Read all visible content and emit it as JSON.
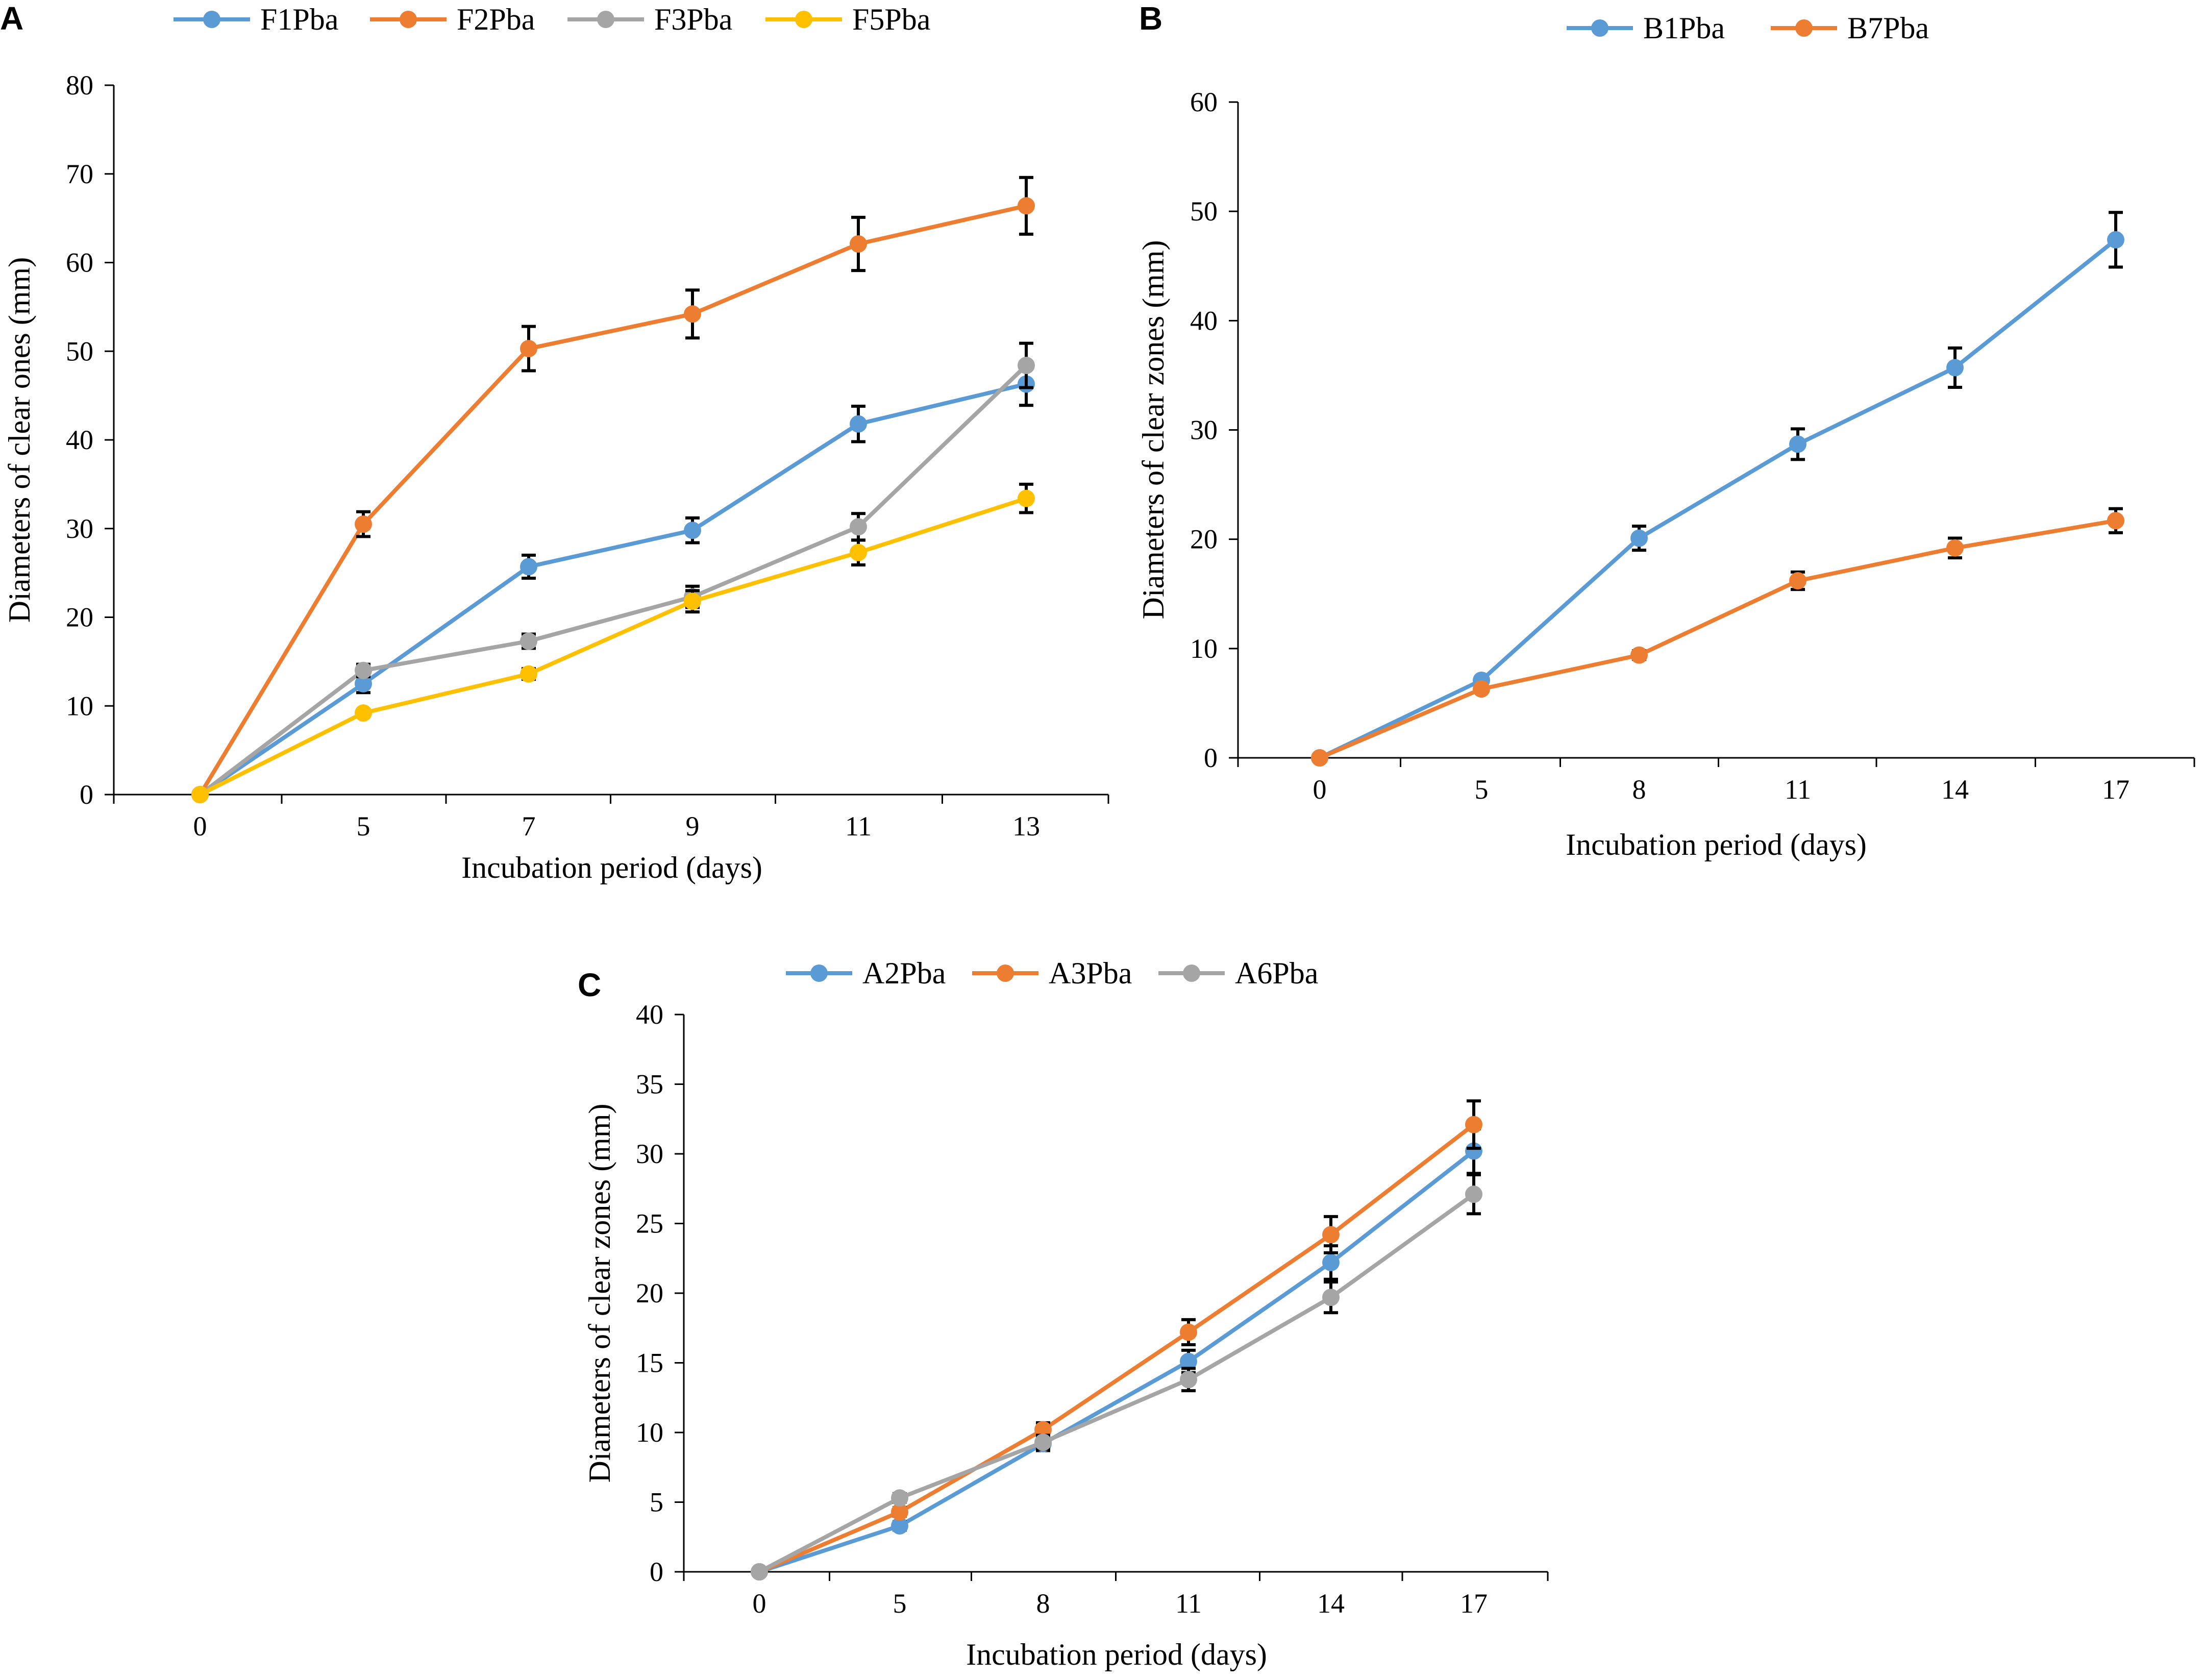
{
  "chart_data": [
    {
      "panel": "A",
      "type": "line",
      "title": "",
      "xlabel": "Incubation period (days)",
      "ylabel": "Diameters of clear ones (mm)",
      "categories": [
        "0",
        "5",
        "7",
        "9",
        "11",
        "13"
      ],
      "ylim": [
        0,
        80
      ],
      "yticks": [
        0,
        10,
        20,
        30,
        40,
        50,
        60,
        70,
        80
      ],
      "legend_position": "top",
      "series": [
        {
          "name": "F1Pba",
          "color": "#5B9BD5",
          "values": [
            0,
            12.5,
            25.7,
            29.8,
            41.8,
            46.3
          ],
          "errors": [
            0,
            1.0,
            1.3,
            1.4,
            2.0,
            2.4
          ]
        },
        {
          "name": "F2Pba",
          "color": "#ED7D31",
          "values": [
            0,
            30.5,
            50.3,
            54.2,
            62.1,
            66.4
          ],
          "errors": [
            0,
            1.4,
            2.5,
            2.7,
            3.0,
            3.2
          ]
        },
        {
          "name": "F3Pba",
          "color": "#A5A5A5",
          "values": [
            0,
            14.0,
            17.3,
            22.3,
            30.2,
            48.4
          ],
          "errors": [
            0,
            0.7,
            0.8,
            1.2,
            1.5,
            2.5
          ]
        },
        {
          "name": "F5Pba",
          "color": "#FFC000",
          "values": [
            0,
            9.2,
            13.6,
            21.8,
            27.3,
            33.4
          ],
          "errors": [
            0,
            0.4,
            0.6,
            1.2,
            1.4,
            1.6
          ]
        }
      ]
    },
    {
      "panel": "B",
      "type": "line",
      "title": "",
      "xlabel": "Incubation period (days)",
      "ylabel": "Diameters of clear zones (mm)",
      "categories": [
        "0",
        "5",
        "8",
        "11",
        "14",
        "17"
      ],
      "ylim": [
        0,
        60
      ],
      "yticks": [
        0,
        10,
        20,
        30,
        40,
        50,
        60
      ],
      "legend_position": "top",
      "series": [
        {
          "name": "B1Pba",
          "color": "#5B9BD5",
          "values": [
            0,
            7.1,
            20.1,
            28.7,
            35.7,
            47.4
          ],
          "errors": [
            0,
            0.3,
            1.1,
            1.4,
            1.8,
            2.5
          ]
        },
        {
          "name": "B7Pba",
          "color": "#ED7D31",
          "values": [
            0,
            6.3,
            9.4,
            16.2,
            19.2,
            21.7
          ],
          "errors": [
            0,
            0.3,
            0.4,
            0.8,
            0.9,
            1.1
          ]
        }
      ]
    },
    {
      "panel": "C",
      "type": "line",
      "title": "",
      "xlabel": "Incubation period (days)",
      "ylabel": "Diameters of clear zones (mm)",
      "categories": [
        "0",
        "5",
        "8",
        "11",
        "14",
        "17"
      ],
      "ylim": [
        0,
        40
      ],
      "yticks": [
        0,
        5,
        10,
        15,
        20,
        25,
        30,
        35,
        40
      ],
      "legend_position": "top",
      "series": [
        {
          "name": "A2Pba",
          "color": "#5B9BD5",
          "values": [
            0,
            3.3,
            9.2,
            15.1,
            22.2,
            30.2
          ],
          "errors": [
            0,
            0.3,
            0.5,
            0.8,
            1.2,
            1.6
          ]
        },
        {
          "name": "A3Pba",
          "color": "#ED7D31",
          "values": [
            0,
            4.3,
            10.2,
            17.2,
            24.2,
            32.1
          ],
          "errors": [
            0,
            0.3,
            0.5,
            0.9,
            1.3,
            1.7
          ]
        },
        {
          "name": "A6Pba",
          "color": "#A5A5A5",
          "values": [
            0,
            5.3,
            9.3,
            13.8,
            19.7,
            27.1
          ],
          "errors": [
            0,
            0.3,
            0.5,
            0.8,
            1.1,
            1.4
          ]
        }
      ]
    }
  ]
}
